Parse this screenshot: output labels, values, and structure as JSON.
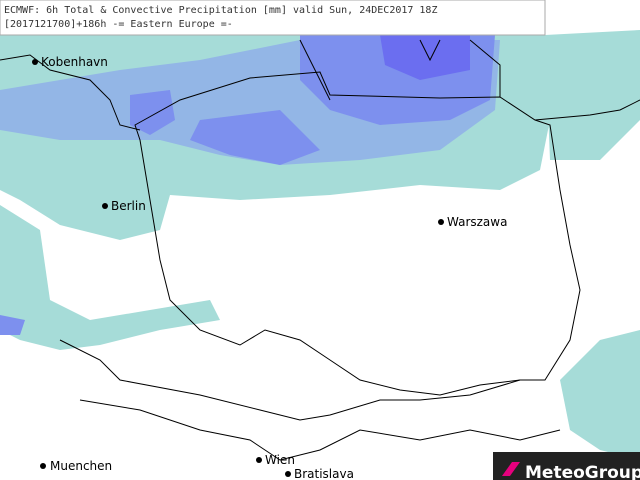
{
  "header": {
    "line1": "ECMWF: 6h Total & Convective Precipitation [mm] valid Sun, 24DEC2017 18Z",
    "line2": "[2017121700]+186h -= Eastern Europe =-"
  },
  "cities": [
    "Kobenhavn",
    "Berlin",
    "Warszawa",
    "Muenchen",
    "Wien",
    "Bratislava"
  ],
  "logo": "MeteoGroup"
}
